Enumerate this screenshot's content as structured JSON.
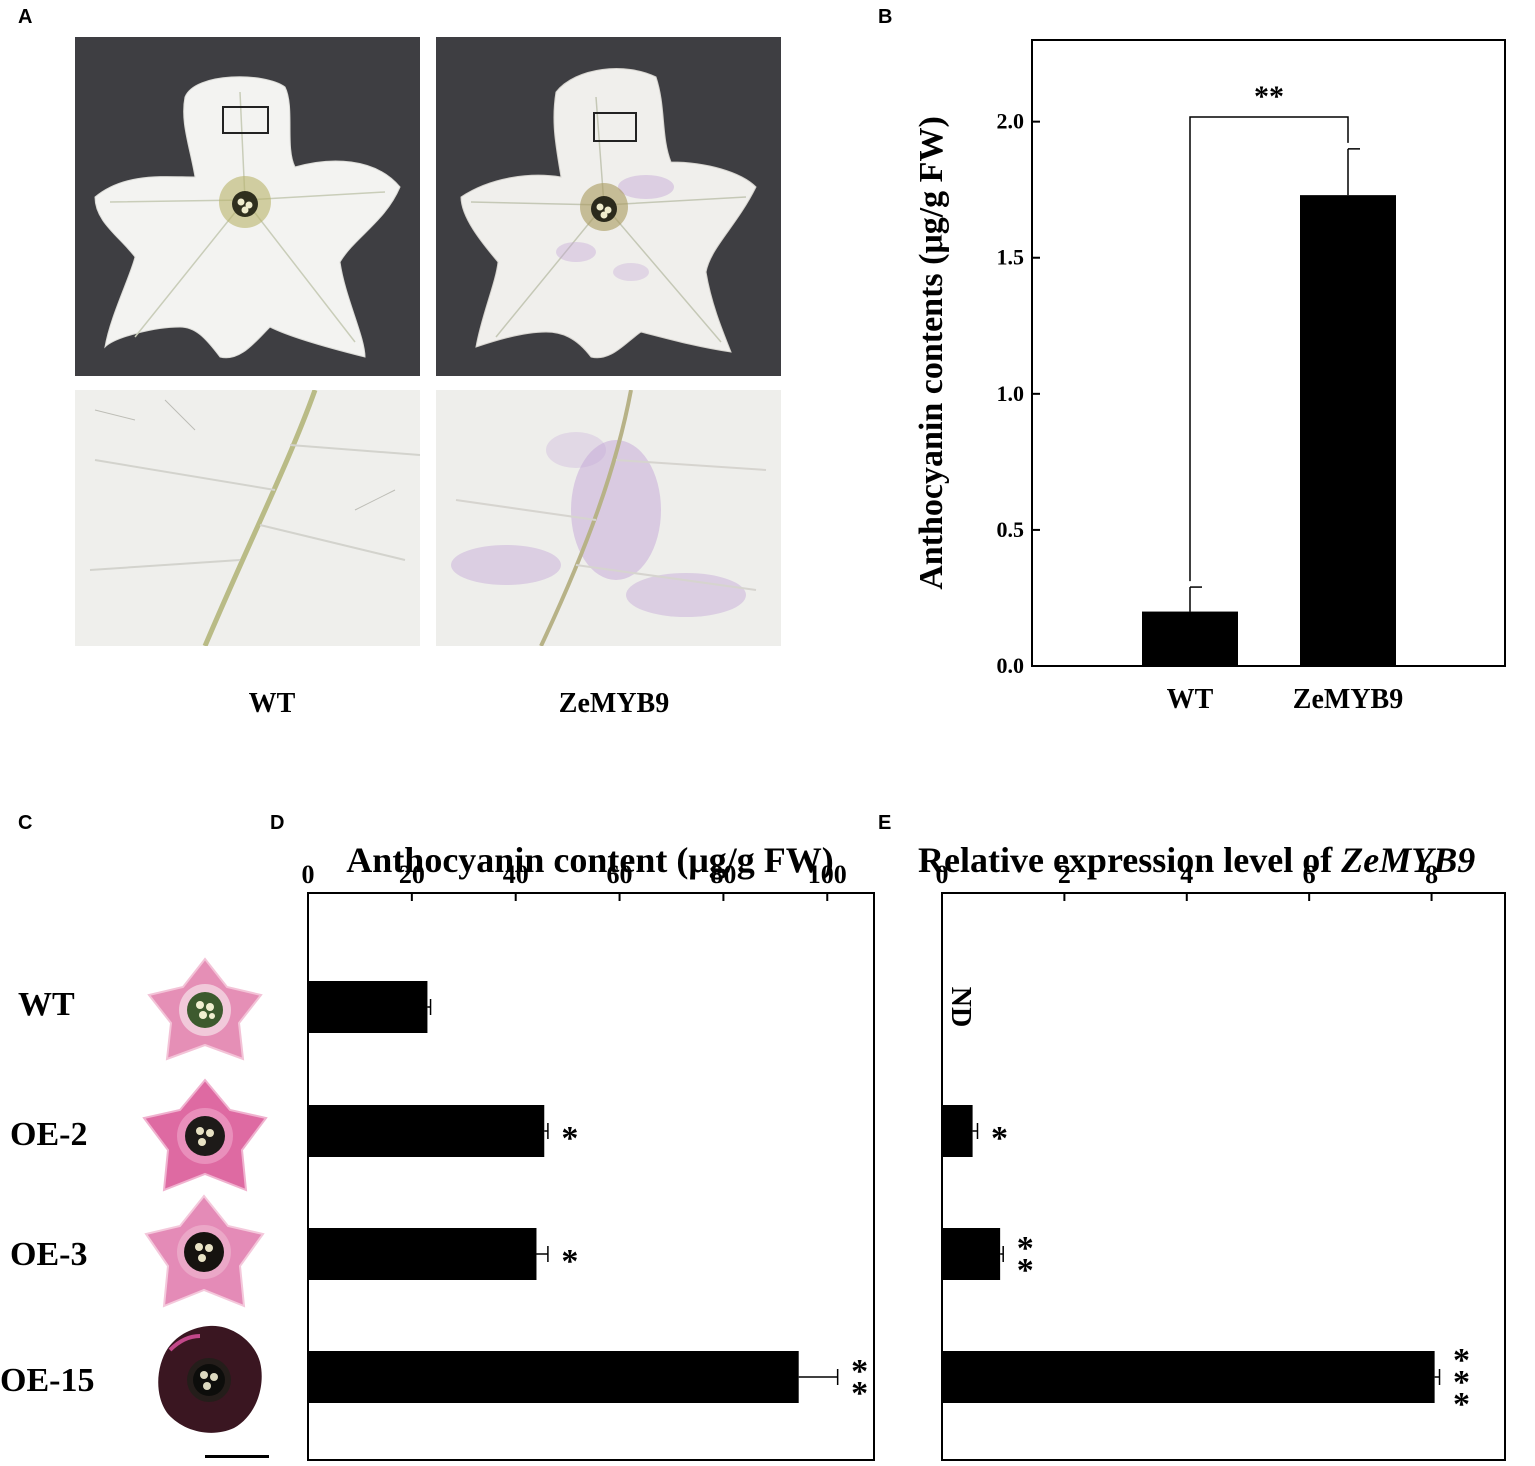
{
  "panels": {
    "A": "A",
    "B": "B",
    "C": "C",
    "D": "D",
    "E": "E"
  },
  "panel_a": {
    "captions": [
      "WT",
      "ZeMYB9"
    ]
  },
  "panel_c": {
    "row_labels": [
      "WT",
      "OE-2",
      "OE-3",
      "OE-15"
    ]
  },
  "colors": {
    "bar": "#000000",
    "photo_bg": "#3e3e42",
    "petal_white": "#f3f3f1",
    "pink": "#e58fb6",
    "magenta": "#de6aa2",
    "dark_purple": "#3a1621",
    "purple_tint": "#c4a6d8"
  },
  "chart_data": [
    {
      "id": "B",
      "type": "bar",
      "ylabel": "Anthocyanin contents (μg/g FW)",
      "categories": [
        "WT",
        "ZeMYB9"
      ],
      "values": [
        0.2,
        1.73
      ],
      "errors": [
        0.09,
        0.17
      ],
      "ylim": [
        0,
        2.3
      ],
      "yticks": [
        "0.0",
        "0.5",
        "1.0",
        "1.5",
        "2.0"
      ],
      "significance": "**",
      "grid": false
    },
    {
      "id": "D",
      "type": "bar",
      "orientation": "horizontal",
      "xlabel": "Anthocyanin content (μg/g FW)",
      "categories": [
        "WT",
        "OE-2",
        "OE-3",
        "OE-15"
      ],
      "values": [
        23,
        45.5,
        44,
        94.5
      ],
      "errors": [
        0.6,
        0.7,
        2.2,
        7.5
      ],
      "significance": [
        "",
        "*",
        "*",
        "**"
      ],
      "xlim": [
        0,
        109
      ],
      "xticks": [
        "0",
        "20",
        "40",
        "60",
        "80",
        "100"
      ],
      "axis_position": "top",
      "grid": false
    },
    {
      "id": "E",
      "type": "bar",
      "orientation": "horizontal",
      "xlabel_prefix": "Relative expression level of ",
      "xlabel_gene": "ZeMYB9",
      "categories": [
        "WT",
        "OE-2",
        "OE-3",
        "OE-15"
      ],
      "values": [
        null,
        0.5,
        0.95,
        8.05
      ],
      "errors": [
        0,
        0.08,
        0.05,
        0.08
      ],
      "annotations": [
        "ND",
        "",
        "",
        ""
      ],
      "significance": [
        "",
        "*",
        "**",
        "***"
      ],
      "xlim": [
        0,
        9.2
      ],
      "xticks": [
        "0",
        "2",
        "4",
        "6",
        "8"
      ],
      "axis_position": "top",
      "grid": false
    }
  ]
}
